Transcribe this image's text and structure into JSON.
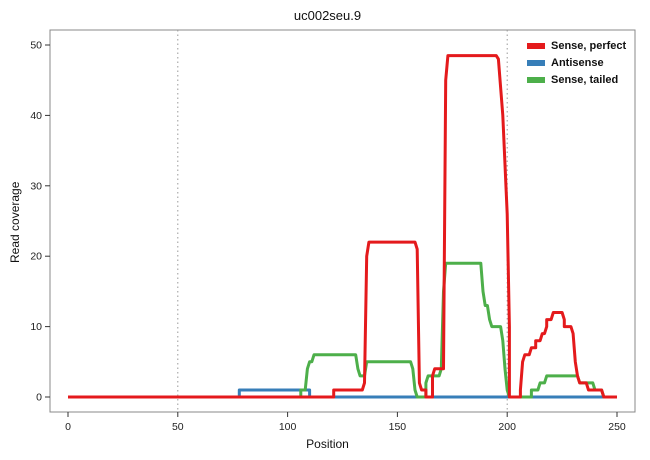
{
  "chart_data": {
    "type": "line",
    "title": "uc002seu.9",
    "xlabel": "Position",
    "ylabel": "Read coverage",
    "xlim": [
      0,
      250
    ],
    "ylim": [
      0,
      50
    ],
    "x_ticks": [
      0,
      50,
      100,
      150,
      200,
      250
    ],
    "y_ticks": [
      0,
      10,
      20,
      30,
      40,
      50
    ],
    "vlines": [
      50,
      200
    ],
    "grid": "off",
    "legend_position": "top-right",
    "line_width": 3,
    "vline_color": "#999999",
    "border_color": "#888888",
    "series": [
      {
        "name": "Sense, perfect",
        "color": "#E41A1C",
        "points": [
          [
            0,
            0
          ],
          [
            121,
            0
          ],
          [
            121,
            1
          ],
          [
            134,
            1
          ],
          [
            135,
            2
          ],
          [
            136,
            20
          ],
          [
            137,
            22
          ],
          [
            158,
            22
          ],
          [
            159,
            21
          ],
          [
            160,
            2
          ],
          [
            161,
            1
          ],
          [
            163,
            1
          ],
          [
            163,
            0
          ],
          [
            166,
            0
          ],
          [
            166,
            3
          ],
          [
            167,
            4
          ],
          [
            171,
            4
          ],
          [
            172,
            45
          ],
          [
            173,
            48.5
          ],
          [
            195,
            48.5
          ],
          [
            196,
            48
          ],
          [
            198,
            40
          ],
          [
            200,
            26
          ],
          [
            201,
            10
          ],
          [
            201,
            0
          ],
          [
            206,
            0
          ],
          [
            206,
            1
          ],
          [
            207,
            5
          ],
          [
            208,
            6
          ],
          [
            210,
            6
          ],
          [
            211,
            7
          ],
          [
            213,
            7
          ],
          [
            213,
            8
          ],
          [
            215,
            8
          ],
          [
            216,
            9
          ],
          [
            217,
            9
          ],
          [
            218,
            10
          ],
          [
            218,
            11
          ],
          [
            220,
            11
          ],
          [
            221,
            12
          ],
          [
            225,
            12
          ],
          [
            226,
            11
          ],
          [
            226,
            10
          ],
          [
            229,
            10
          ],
          [
            230,
            9
          ],
          [
            231,
            5
          ],
          [
            232,
            3
          ],
          [
            233,
            2
          ],
          [
            236,
            2
          ],
          [
            237,
            1
          ],
          [
            243,
            1
          ],
          [
            244,
            0
          ],
          [
            250,
            0
          ]
        ]
      },
      {
        "name": "Antisense",
        "color": "#377EB8",
        "points": [
          [
            0,
            0
          ],
          [
            78,
            0
          ],
          [
            78,
            1
          ],
          [
            110,
            1
          ],
          [
            110,
            0
          ],
          [
            250,
            0
          ]
        ]
      },
      {
        "name": "Sense, tailed",
        "color": "#4DAF4A",
        "points": [
          [
            0,
            0
          ],
          [
            106,
            0
          ],
          [
            106,
            1
          ],
          [
            108,
            1
          ],
          [
            109,
            4
          ],
          [
            110,
            5
          ],
          [
            111,
            5
          ],
          [
            112,
            6
          ],
          [
            131,
            6
          ],
          [
            132,
            4
          ],
          [
            133,
            3
          ],
          [
            135,
            3
          ],
          [
            136,
            5
          ],
          [
            156,
            5
          ],
          [
            157,
            4
          ],
          [
            158,
            1
          ],
          [
            159,
            0
          ],
          [
            163,
            0
          ],
          [
            163,
            2
          ],
          [
            164,
            3
          ],
          [
            169,
            3
          ],
          [
            170,
            4
          ],
          [
            171,
            15
          ],
          [
            172,
            19
          ],
          [
            188,
            19
          ],
          [
            189,
            15
          ],
          [
            190,
            13
          ],
          [
            191,
            13
          ],
          [
            192,
            11
          ],
          [
            193,
            10
          ],
          [
            197,
            10
          ],
          [
            198,
            8
          ],
          [
            199,
            4
          ],
          [
            200,
            1
          ],
          [
            201,
            0
          ],
          [
            211,
            0
          ],
          [
            211,
            1
          ],
          [
            214,
            1
          ],
          [
            215,
            2
          ],
          [
            217,
            2
          ],
          [
            218,
            3
          ],
          [
            232,
            3
          ],
          [
            233,
            2
          ],
          [
            239,
            2
          ],
          [
            240,
            1
          ],
          [
            243,
            1
          ],
          [
            244,
            0
          ],
          [
            250,
            0
          ]
        ]
      }
    ]
  }
}
